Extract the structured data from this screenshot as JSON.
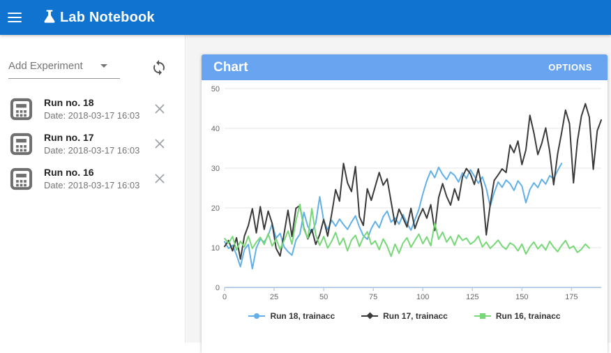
{
  "app_bar": {
    "title": "Lab Notebook"
  },
  "sidebar": {
    "add_experiment_label": "Add Experiment",
    "runs": [
      {
        "title": "Run no. 18",
        "date": "Date: 2018-03-17 16:03"
      },
      {
        "title": "Run no. 17",
        "date": "Date: 2018-03-17 16:03"
      },
      {
        "title": "Run no. 16",
        "date": "Date: 2018-03-17 16:03"
      }
    ]
  },
  "chart_card": {
    "title": "Chart",
    "options_label": "OPTIONS"
  },
  "colors": {
    "appbar_blue": "#1173d0",
    "card_header_blue": "#69a4f0",
    "grid_line": "#e6e6e6",
    "axis_line": "#b9cfe8",
    "axis_text": "#666666"
  },
  "chart_data": {
    "type": "line",
    "title": "Chart",
    "xlabel": "",
    "ylabel": "",
    "xlim": [
      0,
      192
    ],
    "ylim": [
      0,
      50
    ],
    "x_ticks": [
      0,
      25,
      50,
      75,
      100,
      125,
      150,
      175
    ],
    "y_ticks": [
      0,
      10,
      20,
      30,
      40,
      50
    ],
    "grid": "horizontal",
    "legend_position": "bottom",
    "series": [
      {
        "name": "Run 18, trainacc",
        "color": "#62b0e8",
        "marker": "circle",
        "x_start": 0,
        "x_step": 2,
        "values": [
          11.5,
          9.8,
          10.6,
          8.2,
          5.2,
          9.5,
          10.8,
          4.7,
          9.9,
          12.2,
          11.4,
          13.1,
          16.0,
          12.4,
          13.6,
          10.2,
          9.0,
          8.1,
          11.9,
          13.4,
          18.9,
          15.3,
          13.8,
          16.2,
          22.8,
          16.8,
          14.5,
          16.9,
          15.4,
          17.2,
          15.8,
          14.6,
          16.4,
          18.0,
          15.2,
          13.0,
          12.1,
          14.8,
          16.6,
          15.0,
          17.8,
          19.2,
          16.4,
          17.5,
          15.9,
          18.3,
          16.1,
          14.4,
          17.0,
          19.6,
          23.5,
          26.8,
          29.3,
          27.6,
          30.2,
          28.4,
          27.1,
          29.0,
          28.2,
          26.5,
          28.8,
          27.4,
          29.6,
          28.0,
          26.2,
          27.8,
          24.9,
          20.4,
          23.8,
          26.5,
          25.2,
          27.0,
          26.1,
          24.4,
          26.8,
          25.5,
          21.3,
          24.6,
          26.3,
          25.1,
          27.2,
          26.0,
          28.1,
          27.3,
          29.4,
          31.2
        ]
      },
      {
        "name": "Run 17, trainacc",
        "color": "#3a3a3a",
        "marker": "diamond",
        "x_start": 0,
        "x_step": 2,
        "values": [
          10.3,
          11.8,
          9.2,
          12.5,
          7.1,
          12.9,
          15.6,
          19.8,
          13.7,
          20.3,
          14.6,
          19.2,
          16.1,
          9.8,
          7.9,
          13.5,
          19.4,
          12.8,
          19.9,
          20.6,
          14.9,
          12.2,
          14.6,
          10.8,
          13.3,
          17.1,
          12.9,
          18.4,
          24.6,
          21.7,
          31.2,
          26.3,
          24.1,
          30.4,
          17.8,
          15.6,
          24.8,
          21.9,
          25.4,
          28.9,
          25.7,
          27.3,
          21.6,
          15.8,
          19.7,
          17.5,
          15.2,
          19.9,
          14.8,
          17.6,
          19.8,
          17.4,
          20.8,
          14.3,
          22.6,
          26.1,
          22.9,
          20.7,
          24.8,
          21.9,
          27.8,
          29.9,
          28.6,
          25.9,
          29.8,
          24.7,
          13.2,
          20.8,
          26.9,
          28.3,
          29.8,
          28.9,
          35.8,
          33.9,
          36.8,
          30.9,
          34.6,
          43.3,
          38.9,
          33.4,
          36.2,
          40.1,
          34.2,
          25.8,
          33.6,
          38.9,
          44.6,
          41.2,
          26.3,
          36.8,
          43.1,
          46.2,
          42.8,
          29.7,
          39.4,
          42.1
        ]
      },
      {
        "name": "Run 16, trainacc",
        "color": "#76d876",
        "marker": "square",
        "x_start": 0,
        "x_step": 2,
        "values": [
          12.3,
          11.1,
          12.8,
          9.4,
          11.6,
          10.2,
          12.9,
          9.8,
          11.4,
          12.6,
          10.8,
          13.5,
          10.4,
          12.2,
          9.6,
          11.8,
          14.2,
          10.9,
          16.8,
          20.9,
          14.6,
          12.4,
          19.8,
          13.2,
          10.6,
          12.8,
          9.9,
          11.6,
          13.8,
          10.7,
          12.4,
          9.2,
          11.9,
          13.1,
          10.3,
          12.6,
          14.0,
          10.8,
          11.7,
          9.5,
          12.2,
          10.4,
          7.8,
          10.9,
          8.6,
          11.2,
          12.5,
          10.1,
          11.8,
          13.4,
          11.0,
          12.7,
          10.5,
          16.2,
          12.1,
          13.9,
          11.4,
          12.8,
          10.6,
          13.2,
          11.8,
          12.4,
          10.9,
          11.6,
          12.9,
          10.2,
          11.4,
          9.8,
          10.8,
          11.9,
          10.4,
          9.6,
          11.2,
          10.6,
          9.2,
          10.9,
          8.4,
          10.2,
          11.4,
          9.7,
          10.8,
          9.4,
          11.6,
          10.1,
          9.0,
          10.6,
          11.8,
          9.8,
          10.4,
          8.8,
          9.6,
          10.9,
          9.9
        ]
      }
    ]
  }
}
